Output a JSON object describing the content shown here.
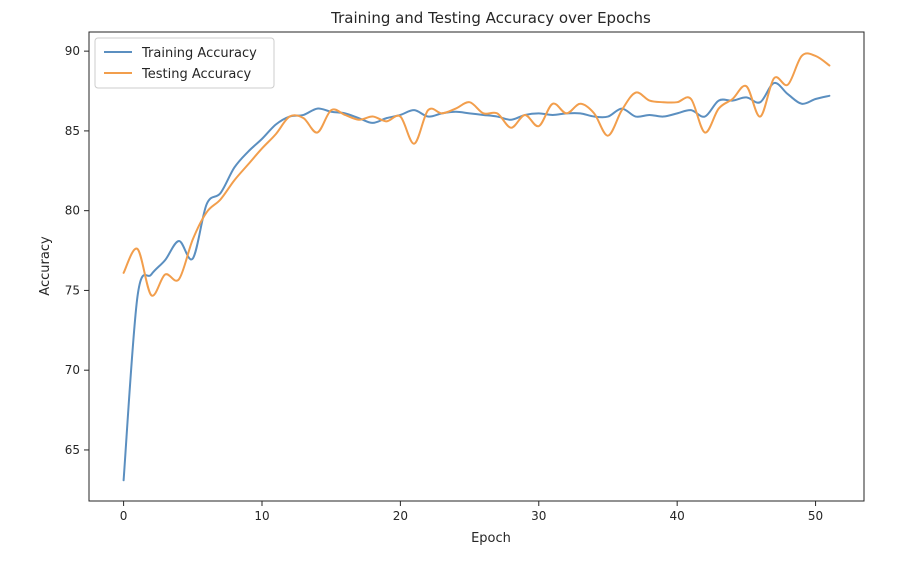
{
  "chart_data": {
    "type": "line",
    "title": "Training and Testing Accuracy over Epochs",
    "xlabel": "Epoch",
    "ylabel": "Accuracy",
    "xlim": [
      -2.5,
      53.5
    ],
    "ylim": [
      61.8,
      91.2
    ],
    "xticks": [
      0,
      10,
      20,
      30,
      40,
      50
    ],
    "yticks": [
      65,
      70,
      75,
      80,
      85,
      90
    ],
    "grid": false,
    "legend_position": "top-left",
    "series": [
      {
        "name": "Training Accuracy",
        "color": "#5b8fc0",
        "x": [
          0,
          1,
          2,
          3,
          4,
          5,
          6,
          7,
          8,
          9,
          10,
          11,
          12,
          13,
          14,
          15,
          16,
          17,
          18,
          19,
          20,
          21,
          22,
          23,
          24,
          25,
          26,
          27,
          28,
          29,
          30,
          31,
          32,
          33,
          34,
          35,
          36,
          37,
          38,
          39,
          40,
          41,
          42,
          43,
          44,
          45,
          46,
          47,
          48,
          49,
          50,
          51
        ],
        "y": [
          63.1,
          74.6,
          76.0,
          76.9,
          78.1,
          77.0,
          80.4,
          81.1,
          82.7,
          83.7,
          84.5,
          85.4,
          85.9,
          86.0,
          86.4,
          86.2,
          86.1,
          85.8,
          85.5,
          85.8,
          86.0,
          86.3,
          85.9,
          86.1,
          86.2,
          86.1,
          86.0,
          85.9,
          85.7,
          86.0,
          86.1,
          86.0,
          86.1,
          86.1,
          85.9,
          85.9,
          86.4,
          85.9,
          86.0,
          85.9,
          86.1,
          86.3,
          85.9,
          86.9,
          86.9,
          87.1,
          86.8,
          88.0,
          87.3,
          86.7,
          87.0,
          87.2
        ]
      },
      {
        "name": "Testing Accuracy",
        "color": "#f29e4c",
        "x": [
          0,
          1,
          2,
          3,
          4,
          5,
          6,
          7,
          8,
          9,
          10,
          11,
          12,
          13,
          14,
          15,
          16,
          17,
          18,
          19,
          20,
          21,
          22,
          23,
          24,
          25,
          26,
          27,
          28,
          29,
          30,
          31,
          32,
          33,
          34,
          35,
          36,
          37,
          38,
          39,
          40,
          41,
          42,
          43,
          44,
          45,
          46,
          47,
          48,
          49,
          50,
          51
        ],
        "y": [
          76.1,
          77.6,
          74.7,
          76.0,
          75.7,
          78.2,
          79.9,
          80.7,
          81.9,
          82.9,
          83.9,
          84.8,
          85.9,
          85.8,
          84.9,
          86.3,
          86.0,
          85.7,
          85.9,
          85.6,
          85.9,
          84.2,
          86.3,
          86.1,
          86.4,
          86.8,
          86.1,
          86.1,
          85.2,
          86.0,
          85.3,
          86.7,
          86.1,
          86.7,
          86.1,
          84.7,
          86.3,
          87.4,
          86.9,
          86.8,
          86.8,
          87.0,
          84.9,
          86.4,
          87.0,
          87.8,
          85.9,
          88.3,
          87.9,
          89.7,
          89.7,
          89.1
        ]
      }
    ]
  }
}
